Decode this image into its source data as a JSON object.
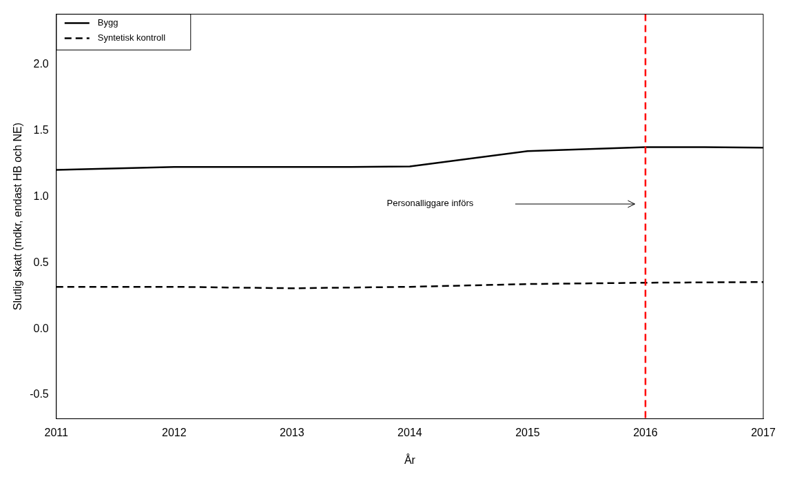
{
  "chart_data": {
    "type": "line",
    "xlabel": "År",
    "ylabel": "Slutlig skatt (mdkr, endast HB och NE)",
    "xlim": [
      2011,
      2017
    ],
    "xticks": [
      2011,
      2012,
      2013,
      2014,
      2015,
      2016,
      2017
    ],
    "ylim": [
      -0.68,
      2.38
    ],
    "yticks": [
      -0.5,
      {
        "value": 0,
        "label": "0.0"
      },
      0.5,
      {
        "value": 1,
        "label": "1.0"
      },
      1.5,
      {
        "value": 2,
        "label": "2.0"
      }
    ],
    "legend": "top left",
    "grid": false,
    "marker": "none",
    "series": [
      {
        "name": "Bygg",
        "color": "#000000",
        "line_style": "solid",
        "x": [
          2011,
          2012,
          2013,
          2013.5,
          2014,
          2015,
          2016,
          2016.5,
          2017
        ],
        "values": [
          1.203,
          1.224,
          1.224,
          1.224,
          1.229,
          1.344,
          1.375,
          1.375,
          1.37
        ]
      },
      {
        "name": "Syntetisk kontroll",
        "color": "#000000",
        "line_style": "dashed",
        "x": [
          2011,
          2012,
          2013,
          2014,
          2015,
          2016,
          2017
        ],
        "values": [
          0.318,
          0.318,
          0.307,
          0.318,
          0.339,
          0.349,
          0.354
        ]
      }
    ],
    "ref_lines": [
      {
        "axis": "x",
        "value": 2016,
        "color": "#ff0000",
        "line_style": "dashed"
      }
    ],
    "annotations": [
      "Personalliggare införs"
    ]
  }
}
